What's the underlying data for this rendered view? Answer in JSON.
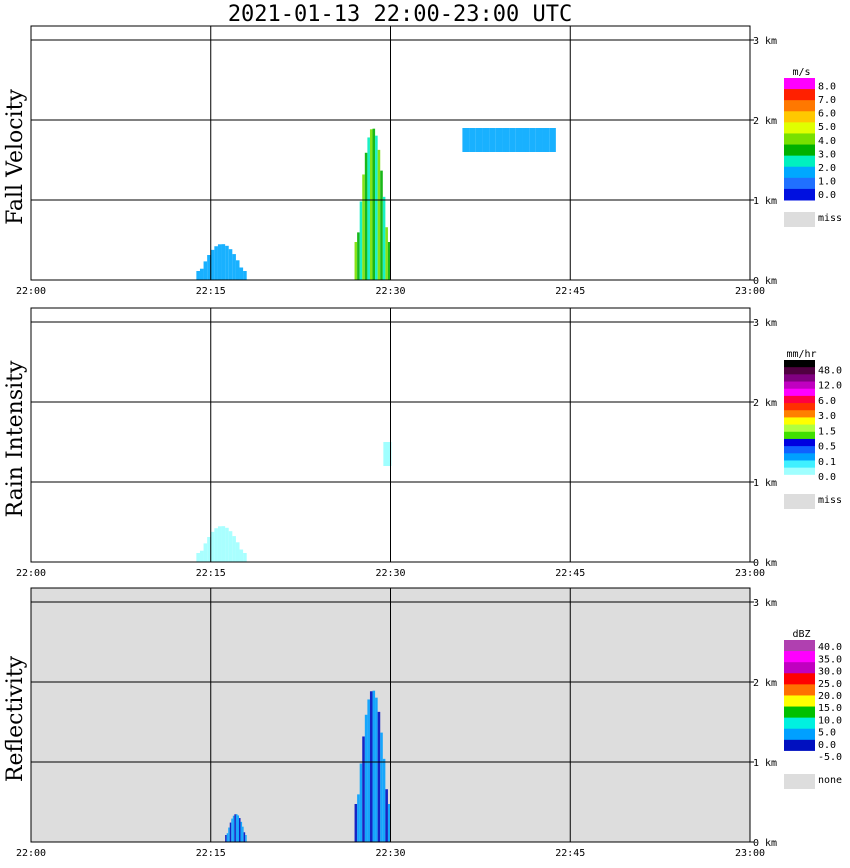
{
  "title": "2021-01-13   22:00-23:00 UTC",
  "x_tick_labels": [
    "22:00",
    "22:15",
    "22:30",
    "22:45",
    "23:00"
  ],
  "y_tick_labels": [
    "0 km",
    "1 km",
    "2 km",
    "3 km"
  ],
  "chart_data": [
    {
      "type": "heatmap",
      "ylabel": "Fall Velocity",
      "units": "m/s",
      "x_range": [
        "22:00",
        "23:00"
      ],
      "y_range_km": [
        0,
        3.2
      ],
      "grid": true,
      "background": "#ffffff",
      "colorbar": {
        "labels": [
          "8.0",
          "7.0",
          "6.0",
          "5.0",
          "4.0",
          "3.0",
          "2.0",
          "1.0",
          "0.0"
        ],
        "colors": [
          "#ff00ff",
          "#ff2000",
          "#ff7800",
          "#ffc800",
          "#e0ff00",
          "#78e000",
          "#00b000",
          "#00f0c0",
          "#00a8ff",
          "#2070ff",
          "#0010e0"
        ],
        "miss_label": "miss"
      },
      "features": [
        {
          "name": "low echo 22:14-22:17",
          "t_start": 22.23,
          "t_end": 22.3,
          "z_top_km": 0.45,
          "dominant": "1.0-2.0 m/s"
        },
        {
          "name": "rain shaft 22:27-22:30",
          "t_start": 22.45,
          "t_end": 22.5,
          "z_top_km": 1.9,
          "dominant": "3.0-6.0 m/s"
        },
        {
          "name": "upper cells 22:36-22:44",
          "t_start": 22.6,
          "t_end": 22.73,
          "z_top_km": 1.9,
          "dominant": "0.0-1.0 m/s"
        }
      ]
    },
    {
      "type": "heatmap",
      "ylabel": "Rain Intensity",
      "units": "mm/hr",
      "x_range": [
        "22:00",
        "23:00"
      ],
      "y_range_km": [
        0,
        3.2
      ],
      "grid": true,
      "background": "#ffffff",
      "colorbar": {
        "labels": [
          "48.0",
          "12.0",
          "6.0",
          "3.0",
          "1.5",
          "0.5",
          "0.1",
          "0.0"
        ],
        "colors": [
          "#000000",
          "#500040",
          "#800080",
          "#c000c0",
          "#ff00ff",
          "#ff0040",
          "#ff3000",
          "#ff8000",
          "#ffff00",
          "#b0ff40",
          "#40e000",
          "#0000e0",
          "#1060ff",
          "#00a0ff",
          "#40f0ff",
          "#a0ffff",
          "#ffffff"
        ],
        "miss_label": "miss"
      },
      "features": [
        {
          "name": "low echo 22:14-22:17",
          "t_start": 22.23,
          "t_end": 22.3,
          "z_top_km": 0.45,
          "dominant": "0.0-0.1 mm/hr"
        },
        {
          "name": "rain shaft core",
          "t_start": 22.49,
          "t_end": 22.5,
          "z_top_km": 1.5,
          "dominant": "0.5-1.5 mm/hr"
        }
      ]
    },
    {
      "type": "heatmap",
      "ylabel": "Reflectivity",
      "units": "dBZ",
      "x_range": [
        "22:00",
        "23:00"
      ],
      "y_range_km": [
        0,
        3.2
      ],
      "grid": true,
      "background": "#dddddd",
      "colorbar": {
        "labels": [
          "40.0",
          "35.0",
          "30.0",
          "25.0",
          "20.0",
          "15.0",
          "10.0",
          "5.0",
          "0.0",
          "-5.0"
        ],
        "colors": [
          "#b040b0",
          "#ff00ff",
          "#c000c0",
          "#ff0000",
          "#ff7000",
          "#ffff00",
          "#00c000",
          "#00f0e0",
          "#00a0ff",
          "#0010c0",
          "#ffffff"
        ],
        "miss_label": "none"
      },
      "features": [
        {
          "name": "low echo 22:14-22:17",
          "t_start": 22.27,
          "t_end": 22.3,
          "z_top_km": 0.35,
          "dominant": "-5.0-0.0 dBZ"
        },
        {
          "name": "rain shaft 22:27-22:30",
          "t_start": 22.45,
          "t_end": 22.5,
          "z_top_km": 1.9,
          "dominant": "-5.0-10.0 dBZ"
        }
      ]
    }
  ]
}
